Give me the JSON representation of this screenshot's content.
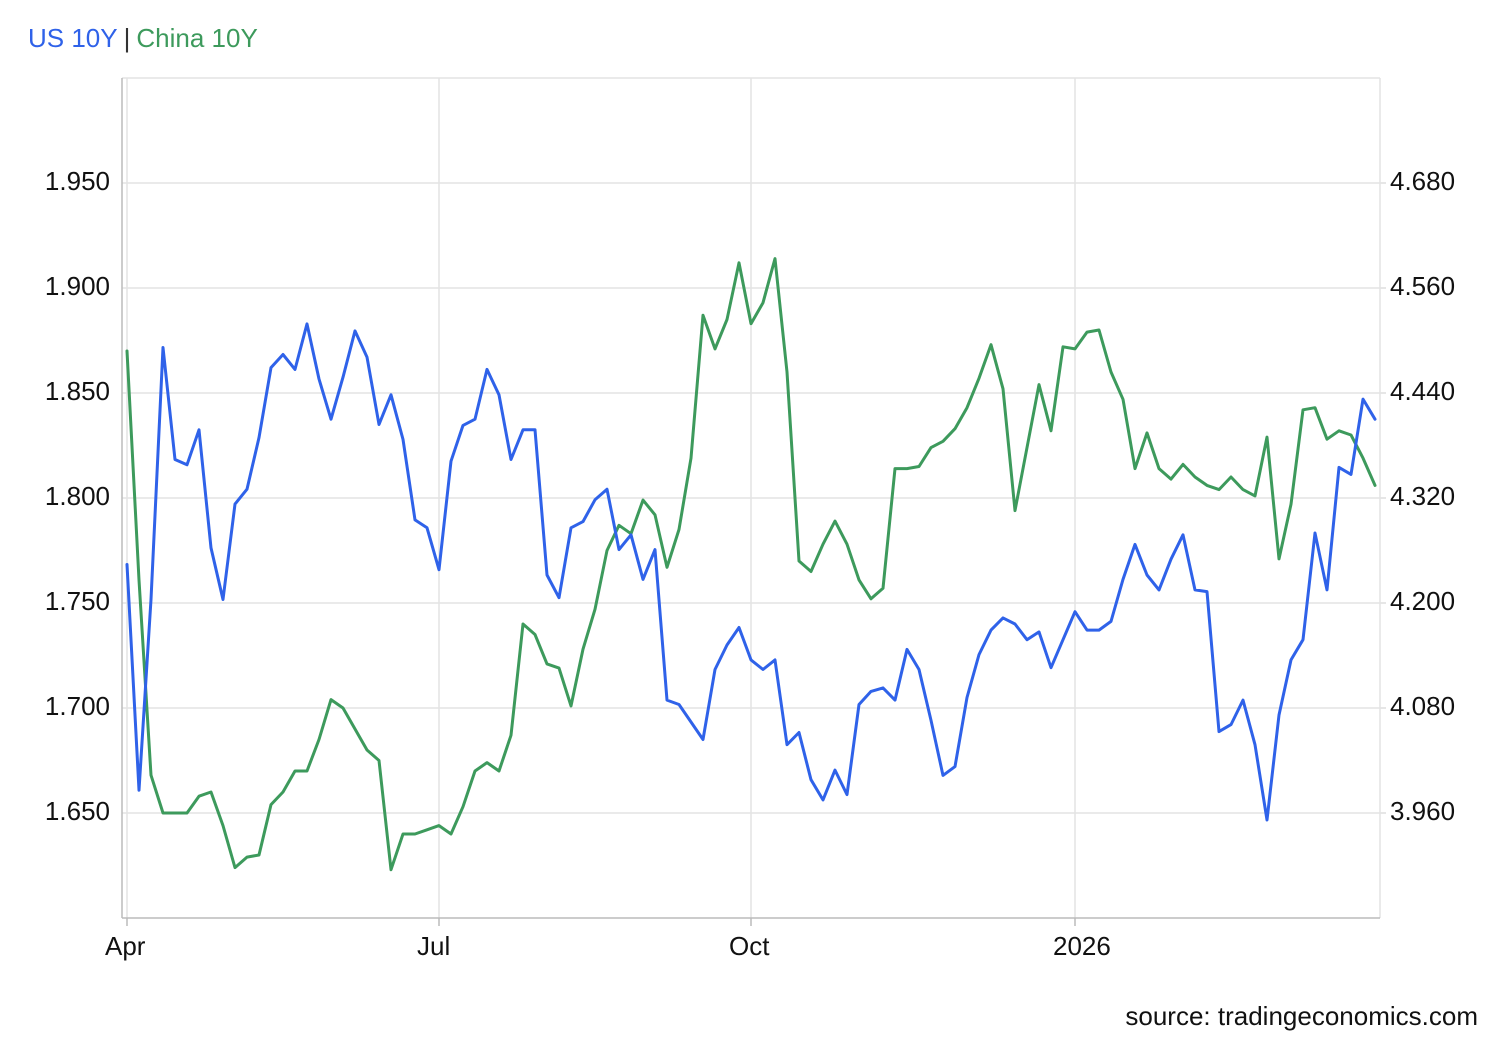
{
  "chart_data": {
    "type": "line",
    "legend_separator": "|",
    "source": "source: tradingeconomics.com",
    "categories": [
      "Apr",
      null,
      null,
      null,
      null,
      null,
      null,
      null,
      null,
      null,
      null,
      null,
      null,
      null,
      null,
      null,
      null,
      null,
      null,
      null,
      null,
      null,
      null,
      null,
      null,
      null,
      "Jul",
      null,
      null,
      null,
      null,
      null,
      null,
      null,
      null,
      null,
      null,
      null,
      null,
      null,
      null,
      null,
      null,
      null,
      null,
      null,
      null,
      null,
      null,
      null,
      null,
      null,
      "Oct",
      null,
      null,
      null,
      null,
      null,
      null,
      null,
      null,
      null,
      null,
      null,
      null,
      null,
      null,
      null,
      null,
      null,
      null,
      null,
      null,
      null,
      null,
      null,
      null,
      null,
      null,
      "2026",
      null,
      null,
      null,
      null,
      null,
      null,
      null,
      null,
      null,
      null,
      null,
      null,
      null,
      null,
      null,
      null,
      null,
      null,
      null,
      null,
      null,
      null,
      null,
      null,
      null
    ],
    "series": [
      {
        "name": "US 10Y",
        "color": "#2f62e9",
        "axis": "y2",
        "values": [
          4.244,
          3.986,
          4.204,
          4.492,
          4.364,
          4.358,
          4.398,
          4.263,
          4.204,
          4.313,
          4.33,
          4.389,
          4.469,
          4.484,
          4.467,
          4.519,
          4.456,
          4.41,
          4.458,
          4.511,
          4.481,
          4.404,
          4.438,
          4.387,
          4.295,
          4.286,
          4.238,
          4.362,
          4.403,
          4.41,
          4.467,
          4.438,
          4.364,
          4.398,
          4.398,
          4.232,
          4.206,
          4.286,
          4.293,
          4.318,
          4.33,
          4.261,
          4.278,
          4.227,
          4.261,
          4.089,
          4.084,
          4.064,
          4.044,
          4.124,
          4.152,
          4.172,
          4.135,
          4.124,
          4.135,
          4.038,
          4.052,
          3.998,
          3.975,
          4.009,
          3.981,
          4.084,
          4.099,
          4.103,
          4.089,
          4.147,
          4.124,
          4.066,
          4.003,
          4.013,
          4.092,
          4.141,
          4.169,
          4.183,
          4.176,
          4.158,
          4.167,
          4.126,
          4.158,
          4.19,
          4.169,
          4.169,
          4.179,
          4.227,
          4.267,
          4.232,
          4.215,
          4.25,
          4.278,
          4.215,
          4.213,
          4.053,
          4.061,
          4.089,
          4.038,
          3.952,
          4.072,
          4.135,
          4.158,
          4.28,
          4.215,
          4.355,
          4.347,
          4.433,
          4.41
        ]
      },
      {
        "name": "China 10Y",
        "color": "#3d9a5c",
        "values": [
          1.87,
          1.761,
          1.668,
          1.65,
          1.65,
          1.65,
          1.658,
          1.66,
          1.644,
          1.624,
          1.629,
          1.63,
          1.654,
          1.66,
          1.67,
          1.67,
          1.685,
          1.704,
          1.7,
          1.69,
          1.68,
          1.675,
          1.623,
          1.64,
          1.64,
          1.642,
          1.644,
          1.64,
          1.653,
          1.67,
          1.674,
          1.67,
          1.687,
          1.74,
          1.735,
          1.721,
          1.719,
          1.701,
          1.728,
          1.747,
          1.775,
          1.787,
          1.783,
          1.799,
          1.792,
          1.767,
          1.785,
          1.819,
          1.887,
          1.871,
          1.885,
          1.912,
          1.883,
          1.893,
          1.914,
          1.86,
          1.77,
          1.765,
          1.778,
          1.789,
          1.778,
          1.761,
          1.752,
          1.757,
          1.814,
          1.814,
          1.815,
          1.824,
          1.827,
          1.833,
          1.843,
          1.857,
          1.873,
          1.852,
          1.794,
          1.824,
          1.854,
          1.832,
          1.872,
          1.871,
          1.879,
          1.88,
          1.86,
          1.847,
          1.814,
          1.831,
          1.814,
          1.809,
          1.816,
          1.81,
          1.806,
          1.804,
          1.81,
          1.804,
          1.801,
          1.829,
          1.771,
          1.797,
          1.842,
          1.843,
          1.828,
          1.832,
          1.83,
          1.819,
          1.806
        ]
      }
    ],
    "ylim": [
      1.6,
      2.0
    ],
    "yticks": [
      {
        "value": 1.65,
        "label": "1.650"
      },
      {
        "value": 1.7,
        "label": "1.700"
      },
      {
        "value": 1.75,
        "label": "1.750"
      },
      {
        "value": 1.8,
        "label": "1.800"
      },
      {
        "value": 1.85,
        "label": "1.850"
      },
      {
        "value": 1.9,
        "label": "1.900"
      },
      {
        "value": 1.95,
        "label": "1.950"
      }
    ],
    "y2lim": [
      3.84,
      4.8
    ],
    "y2ticks": [
      {
        "value": 3.96,
        "label": "3.960"
      },
      {
        "value": 4.08,
        "label": "4.080"
      },
      {
        "value": 4.2,
        "label": "4.200"
      },
      {
        "value": 4.32,
        "label": "4.320"
      },
      {
        "value": 4.44,
        "label": "4.440"
      },
      {
        "value": 4.56,
        "label": "4.560"
      },
      {
        "value": 4.68,
        "label": "4.680"
      }
    ],
    "grid": true
  }
}
